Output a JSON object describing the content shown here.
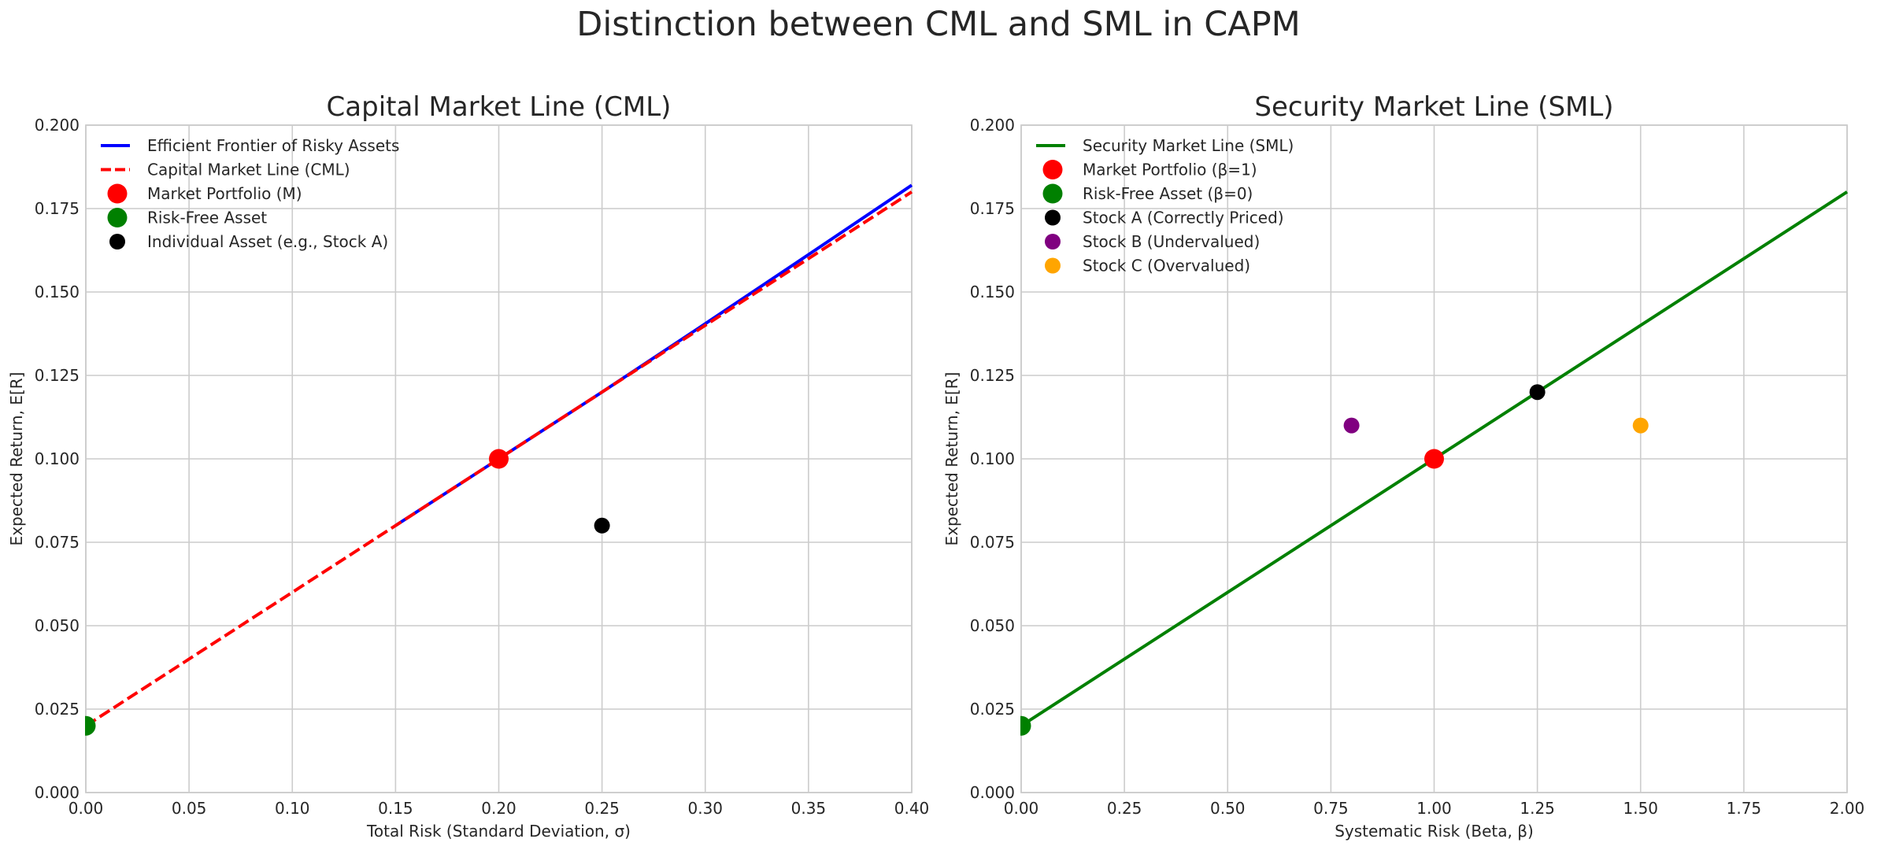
{
  "figure": {
    "suptitle": "Distinction between CML and SML in CAPM"
  },
  "colors": {
    "frontier": "#0000ff",
    "cml": "#ff0000",
    "sml": "#008000",
    "market": "#ff0000",
    "riskfree": "#008000",
    "stock_a": "#000000",
    "stock_b": "#800080",
    "stock_c": "#ffa500",
    "grid": "#cccccc"
  },
  "chart_data": [
    {
      "type": "line",
      "title": "Capital Market Line (CML)",
      "xlabel": "Total Risk (Standard Deviation, σ)",
      "ylabel": "Expected Return, E[R]",
      "xlim": [
        0.0,
        0.4
      ],
      "ylim": [
        0.0,
        0.2
      ],
      "xticks": [
        "0.00",
        "0.05",
        "0.10",
        "0.15",
        "0.20",
        "0.25",
        "0.30",
        "0.35",
        "0.40"
      ],
      "yticks": [
        "0.000",
        "0.025",
        "0.050",
        "0.075",
        "0.100",
        "0.125",
        "0.150",
        "0.175",
        "0.200"
      ],
      "grid": true,
      "legend_position": "top-left",
      "series": [
        {
          "name": "Efficient Frontier of Risky Assets",
          "kind": "line",
          "style": "solid",
          "color_key": "frontier",
          "x": [
            0.15,
            0.2,
            0.25,
            0.3,
            0.35,
            0.4
          ],
          "y": [
            0.08,
            0.1,
            0.12,
            0.1405,
            0.1612,
            0.182
          ]
        },
        {
          "name": "Capital Market Line (CML)",
          "kind": "line",
          "style": "dashed",
          "color_key": "cml",
          "x": [
            0.0,
            0.4
          ],
          "y": [
            0.02,
            0.18
          ]
        },
        {
          "name": "Market Portfolio (M)",
          "kind": "point",
          "size": "large",
          "color_key": "market",
          "x": [
            0.2
          ],
          "y": [
            0.1
          ]
        },
        {
          "name": "Risk-Free Asset",
          "kind": "point",
          "size": "large",
          "color_key": "riskfree",
          "x": [
            0.0
          ],
          "y": [
            0.02
          ]
        },
        {
          "name": "Individual Asset (e.g., Stock A)",
          "kind": "point",
          "size": "small",
          "color_key": "stock_a",
          "x": [
            0.25
          ],
          "y": [
            0.08
          ]
        }
      ]
    },
    {
      "type": "line",
      "title": "Security Market Line (SML)",
      "xlabel": "Systematic Risk (Beta, β)",
      "ylabel": "Expected Return, E[R]",
      "xlim": [
        0.0,
        2.0
      ],
      "ylim": [
        0.0,
        0.2
      ],
      "xticks": [
        "0.00",
        "0.25",
        "0.50",
        "0.75",
        "1.00",
        "1.25",
        "1.50",
        "1.75",
        "2.00"
      ],
      "yticks": [
        "0.000",
        "0.025",
        "0.050",
        "0.075",
        "0.100",
        "0.125",
        "0.150",
        "0.175",
        "0.200"
      ],
      "grid": true,
      "legend_position": "top-left",
      "series": [
        {
          "name": "Security Market Line (SML)",
          "kind": "line",
          "style": "solid",
          "color_key": "sml",
          "x": [
            0.0,
            2.0
          ],
          "y": [
            0.02,
            0.18
          ]
        },
        {
          "name": "Market Portfolio (β=1)",
          "kind": "point",
          "size": "large",
          "color_key": "market",
          "x": [
            1.0
          ],
          "y": [
            0.1
          ]
        },
        {
          "name": "Risk-Free Asset (β=0)",
          "kind": "point",
          "size": "large",
          "color_key": "riskfree",
          "x": [
            0.0
          ],
          "y": [
            0.02
          ]
        },
        {
          "name": "Stock A (Correctly Priced)",
          "kind": "point",
          "size": "small",
          "color_key": "stock_a",
          "x": [
            1.25
          ],
          "y": [
            0.12
          ]
        },
        {
          "name": "Stock B (Undervalued)",
          "kind": "point",
          "size": "small",
          "color_key": "stock_b",
          "x": [
            0.8
          ],
          "y": [
            0.11
          ]
        },
        {
          "name": "Stock C (Overvalued)",
          "kind": "point",
          "size": "small",
          "color_key": "stock_c",
          "x": [
            1.5
          ],
          "y": [
            0.11
          ]
        }
      ]
    }
  ]
}
